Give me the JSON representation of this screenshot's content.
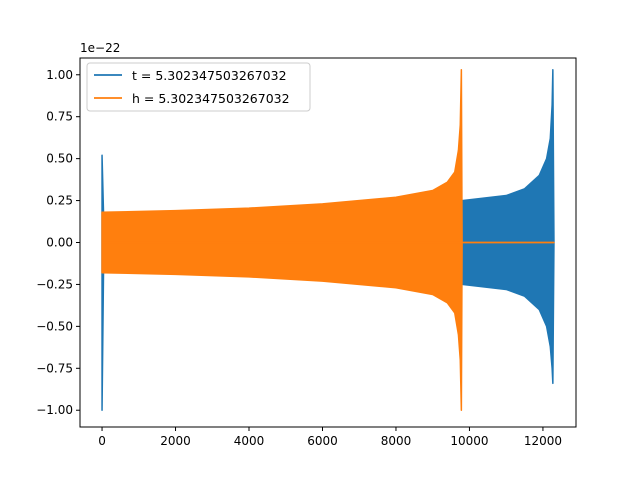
{
  "chart_data": {
    "type": "line",
    "title": "",
    "xlabel": "",
    "ylabel": "",
    "y_offset_text": "1e−22",
    "xlim": [
      -600,
      12900
    ],
    "ylim": [
      -1.1,
      1.1
    ],
    "grid": false,
    "legend_position": "upper-left",
    "x_ticks": [
      0,
      2000,
      4000,
      6000,
      8000,
      10000,
      12000
    ],
    "x_tick_labels": [
      "0",
      "2000",
      "4000",
      "6000",
      "8000",
      "10000",
      "12000"
    ],
    "y_ticks": [
      -1.0,
      -0.75,
      -0.5,
      -0.25,
      0.0,
      0.25,
      0.5,
      0.75,
      1.0
    ],
    "y_tick_labels": [
      "−1.00",
      "−0.75",
      "−0.50",
      "−0.25",
      "0.00",
      "0.25",
      "0.50",
      "0.75",
      "1.00"
    ],
    "series": [
      {
        "name": "t = 5.302347503267032",
        "color": "#1f77b4",
        "x": [
          0,
          0,
          40,
          80,
          9780,
          9780,
          9800,
          11000,
          11500,
          11900,
          12100,
          12200,
          12250,
          12270,
          12300
        ],
        "upper": [
          0.52,
          0.52,
          0.18,
          0.18,
          0.18,
          0.25,
          0.25,
          0.28,
          0.32,
          0.4,
          0.5,
          0.62,
          0.82,
          1.03,
          0.0
        ],
        "lower": [
          -1.0,
          -1.0,
          -0.18,
          -0.18,
          -0.18,
          -0.25,
          -0.25,
          -0.28,
          -0.32,
          -0.4,
          -0.5,
          -0.62,
          -0.75,
          -0.84,
          0.0
        ]
      },
      {
        "name": "h = 5.302347503267032",
        "color": "#ff7f0e",
        "x": [
          0,
          2000,
          4000,
          6000,
          8000,
          9000,
          9400,
          9600,
          9700,
          9750,
          9780,
          9800,
          12300
        ],
        "upper": [
          0.18,
          0.19,
          0.205,
          0.23,
          0.27,
          0.31,
          0.36,
          0.42,
          0.55,
          0.7,
          1.03,
          0.0,
          0.0
        ],
        "lower": [
          -0.18,
          -0.19,
          -0.205,
          -0.23,
          -0.27,
          -0.31,
          -0.36,
          -0.42,
          -0.55,
          -0.7,
          -1.0,
          0.0,
          0.0
        ]
      }
    ]
  }
}
